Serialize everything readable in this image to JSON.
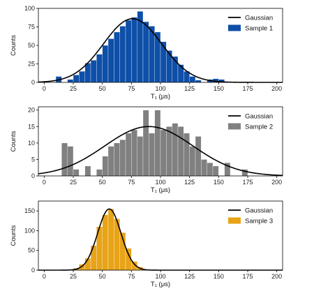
{
  "chart_data": [
    {
      "type": "bar",
      "xlabel": "T₁ (μs)",
      "ylabel": "Counts",
      "xlim": [
        -5,
        205
      ],
      "ylim": [
        0,
        100
      ],
      "xticks": [
        0,
        25,
        50,
        75,
        100,
        125,
        150,
        175,
        200
      ],
      "yticks": [
        0,
        25,
        50,
        75,
        100
      ],
      "legend_position": "top-right",
      "bin_width": 5,
      "series": [
        {
          "name": "Sample 1",
          "kind": "histogram",
          "color": "#0e4fa8",
          "bins": [
            {
              "x0": 10,
              "count": 8
            },
            {
              "x0": 20,
              "count": 4
            },
            {
              "x0": 25,
              "count": 10
            },
            {
              "x0": 30,
              "count": 15
            },
            {
              "x0": 35,
              "count": 26
            },
            {
              "x0": 40,
              "count": 30
            },
            {
              "x0": 45,
              "count": 38
            },
            {
              "x0": 50,
              "count": 50
            },
            {
              "x0": 55,
              "count": 59
            },
            {
              "x0": 60,
              "count": 68
            },
            {
              "x0": 65,
              "count": 76
            },
            {
              "x0": 70,
              "count": 84
            },
            {
              "x0": 75,
              "count": 88
            },
            {
              "x0": 80,
              "count": 96
            },
            {
              "x0": 85,
              "count": 82
            },
            {
              "x0": 90,
              "count": 76
            },
            {
              "x0": 95,
              "count": 68
            },
            {
              "x0": 100,
              "count": 55
            },
            {
              "x0": 105,
              "count": 43
            },
            {
              "x0": 110,
              "count": 35
            },
            {
              "x0": 115,
              "count": 24
            },
            {
              "x0": 120,
              "count": 15
            },
            {
              "x0": 125,
              "count": 8
            },
            {
              "x0": 130,
              "count": 3
            },
            {
              "x0": 140,
              "count": 4
            },
            {
              "x0": 145,
              "count": 5
            },
            {
              "x0": 150,
              "count": 4
            }
          ]
        },
        {
          "name": "Gaussian",
          "kind": "line",
          "color": "#000000",
          "amplitude": 86,
          "mean": 76,
          "sigma": 25
        }
      ]
    },
    {
      "type": "bar",
      "xlabel": "T₁ (μs)",
      "ylabel": "Counts",
      "xlim": [
        -5,
        205
      ],
      "ylim": [
        0,
        21
      ],
      "xticks": [
        0,
        25,
        50,
        75,
        100,
        125,
        150,
        175,
        200
      ],
      "yticks": [
        0,
        5,
        10,
        15,
        20
      ],
      "legend_position": "top-right",
      "bin_width": 5,
      "series": [
        {
          "name": "Sample 2",
          "kind": "histogram",
          "color": "#808080",
          "bins": [
            {
              "x0": 15,
              "count": 10
            },
            {
              "x0": 20,
              "count": 9
            },
            {
              "x0": 25,
              "count": 2
            },
            {
              "x0": 35,
              "count": 3
            },
            {
              "x0": 45,
              "count": 2
            },
            {
              "x0": 50,
              "count": 6
            },
            {
              "x0": 55,
              "count": 9
            },
            {
              "x0": 60,
              "count": 10
            },
            {
              "x0": 65,
              "count": 11
            },
            {
              "x0": 70,
              "count": 13
            },
            {
              "x0": 75,
              "count": 14
            },
            {
              "x0": 80,
              "count": 12
            },
            {
              "x0": 85,
              "count": 20
            },
            {
              "x0": 90,
              "count": 13
            },
            {
              "x0": 95,
              "count": 20
            },
            {
              "x0": 100,
              "count": 14
            },
            {
              "x0": 105,
              "count": 15
            },
            {
              "x0": 110,
              "count": 16
            },
            {
              "x0": 115,
              "count": 15
            },
            {
              "x0": 120,
              "count": 13
            },
            {
              "x0": 125,
              "count": 9
            },
            {
              "x0": 130,
              "count": 12
            },
            {
              "x0": 135,
              "count": 5
            },
            {
              "x0": 140,
              "count": 4
            },
            {
              "x0": 145,
              "count": 3
            },
            {
              "x0": 155,
              "count": 4
            },
            {
              "x0": 170,
              "count": 2
            }
          ]
        },
        {
          "name": "Gaussian",
          "kind": "line",
          "color": "#000000",
          "amplitude": 15,
          "mean": 90,
          "sigma": 38
        }
      ]
    },
    {
      "type": "bar",
      "xlabel": "T₁ (μs)",
      "ylabel": "Counts",
      "xlim": [
        -5,
        205
      ],
      "ylim": [
        0,
        175
      ],
      "xticks": [
        0,
        25,
        50,
        75,
        100,
        125,
        150,
        175,
        200
      ],
      "yticks": [
        0,
        50,
        100,
        150
      ],
      "legend_position": "top-right",
      "bin_width": 5,
      "series": [
        {
          "name": "Sample 3",
          "kind": "histogram",
          "color": "#e8a317",
          "bins": [
            {
              "x0": 25,
              "count": 5
            },
            {
              "x0": 30,
              "count": 15
            },
            {
              "x0": 35,
              "count": 30
            },
            {
              "x0": 40,
              "count": 62
            },
            {
              "x0": 45,
              "count": 110
            },
            {
              "x0": 50,
              "count": 140
            },
            {
              "x0": 55,
              "count": 155
            },
            {
              "x0": 60,
              "count": 130
            },
            {
              "x0": 65,
              "count": 95
            },
            {
              "x0": 70,
              "count": 55
            },
            {
              "x0": 75,
              "count": 22
            },
            {
              "x0": 80,
              "count": 8
            },
            {
              "x0": 85,
              "count": 2
            }
          ]
        },
        {
          "name": "Gaussian",
          "kind": "line",
          "color": "#000000",
          "amplitude": 155,
          "mean": 56,
          "sigma": 10
        }
      ]
    }
  ]
}
